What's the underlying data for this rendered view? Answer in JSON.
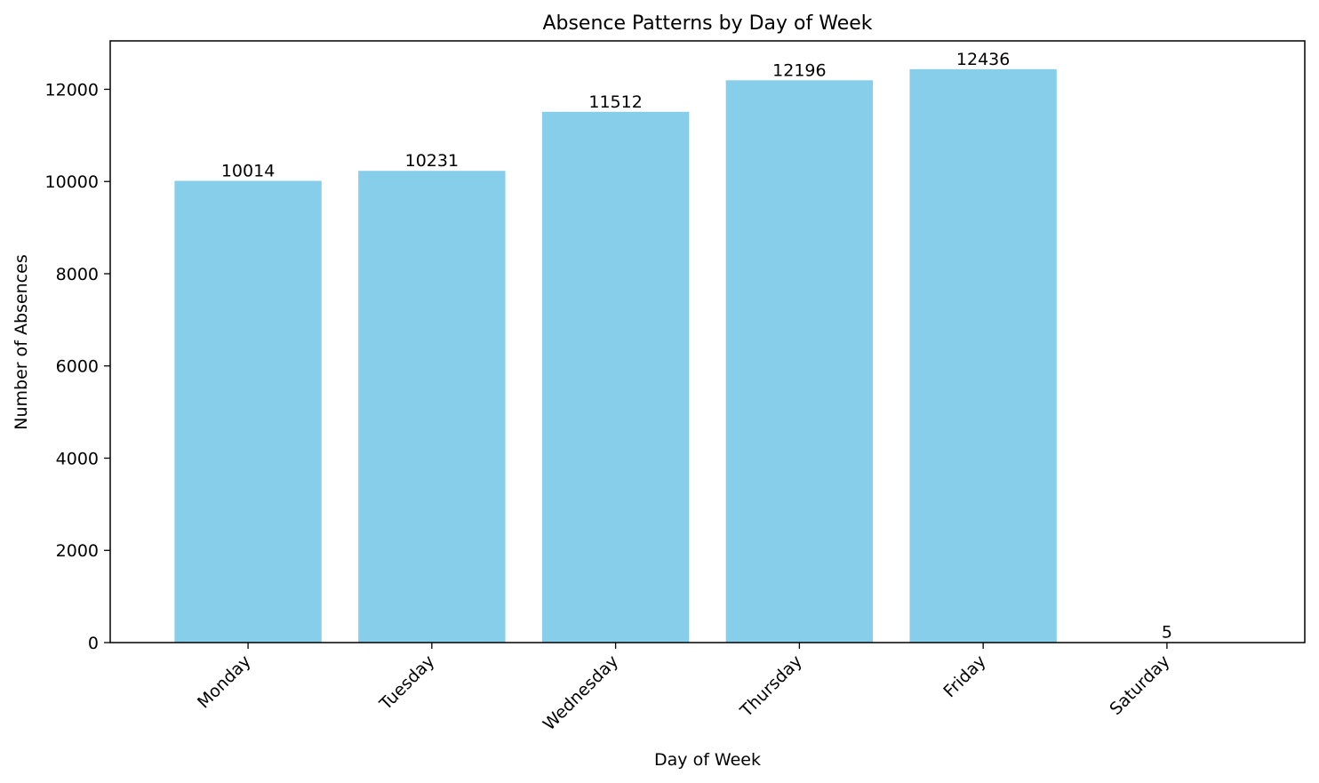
{
  "chart_data": {
    "type": "bar",
    "title": "Absence Patterns by Day of Week",
    "xlabel": "Day of Week",
    "ylabel": "Number of Absences",
    "categories": [
      "Monday",
      "Tuesday",
      "Wednesday",
      "Thursday",
      "Friday",
      "Saturday"
    ],
    "values": [
      10014,
      10231,
      11512,
      12196,
      12436,
      5
    ],
    "ylim": [
      0,
      13050
    ],
    "yticks": [
      0,
      2000,
      4000,
      6000,
      8000,
      10000,
      12000
    ],
    "bar_color": "#87CEEB",
    "grid": false,
    "legend": "none",
    "data_labels": true,
    "xtick_rotation": "45deg"
  }
}
